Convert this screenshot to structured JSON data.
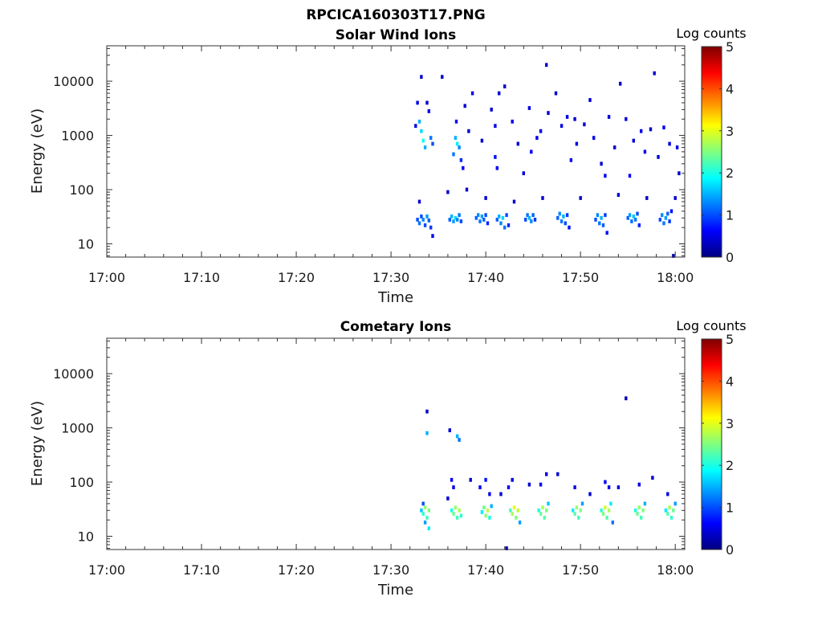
{
  "figure_title": "RPCICA160303T17.PNG",
  "colormap": "jet",
  "colormap_stops": [
    "#00007f",
    "#0000ff",
    "#007fff",
    "#00ffff",
    "#7fff7f",
    "#ffff00",
    "#ff7f00",
    "#ff0000",
    "#7f0000"
  ],
  "chart_data": [
    {
      "type": "heatmap",
      "title": "Solar Wind Ions",
      "xlabel": "Time",
      "ylabel": "Energy (eV)",
      "yscale": "log",
      "xticks": [
        "17:00",
        "17:10",
        "17:20",
        "17:30",
        "17:40",
        "17:50",
        "18:00"
      ],
      "xlim_minutes": [
        0,
        61
      ],
      "yticks": [
        10,
        100,
        1000,
        10000
      ],
      "ytick_labels": [
        "10",
        "100",
        "1000",
        "10000"
      ],
      "ylim": [
        5.7,
        45000
      ],
      "colorbar": {
        "label": "Log counts",
        "min": 0,
        "max": 5,
        "ticks": [
          "0",
          "1",
          "2",
          "3",
          "4",
          "5"
        ]
      },
      "data_points": [
        [
          32.8,
          28,
          1.0
        ],
        [
          33.0,
          24,
          1.2
        ],
        [
          33.2,
          32,
          1.0
        ],
        [
          33.4,
          28,
          1.3
        ],
        [
          33.6,
          22,
          1.0
        ],
        [
          33.8,
          32,
          1.4
        ],
        [
          34.0,
          27,
          1.1
        ],
        [
          34.2,
          20,
          0.9
        ],
        [
          34.4,
          14,
          0.6
        ],
        [
          33.0,
          1800,
          1.5
        ],
        [
          33.2,
          1200,
          1.7
        ],
        [
          33.4,
          800,
          1.9
        ],
        [
          33.6,
          600,
          1.5
        ],
        [
          34.2,
          900,
          1.2
        ],
        [
          34.4,
          700,
          1.0
        ],
        [
          33.0,
          60,
          0.4
        ],
        [
          32.8,
          4000,
          0.5
        ],
        [
          33.2,
          12000,
          0.4
        ],
        [
          34.0,
          2800,
          0.6
        ],
        [
          32.6,
          1500,
          0.5
        ],
        [
          36.2,
          28,
          1.1
        ],
        [
          36.4,
          32,
          1.5
        ],
        [
          36.6,
          26,
          1.4
        ],
        [
          36.8,
          30,
          1.7
        ],
        [
          37.0,
          28,
          1.3
        ],
        [
          37.2,
          34,
          1.2
        ],
        [
          37.4,
          26,
          1.0
        ],
        [
          36.8,
          900,
          1.5
        ],
        [
          37.0,
          700,
          1.8
        ],
        [
          37.2,
          600,
          1.3
        ],
        [
          36.6,
          450,
          1.2
        ],
        [
          37.4,
          350,
          0.8
        ],
        [
          37.6,
          250,
          0.6
        ],
        [
          37.8,
          3500,
          0.4
        ],
        [
          36.9,
          1800,
          0.7
        ],
        [
          39.0,
          30,
          1.1
        ],
        [
          39.2,
          34,
          1.3
        ],
        [
          39.4,
          26,
          1.2
        ],
        [
          39.6,
          32,
          1.4
        ],
        [
          39.8,
          28,
          1.1
        ],
        [
          40.0,
          34,
          1.0
        ],
        [
          40.2,
          24,
          0.8
        ],
        [
          41.2,
          28,
          1.1
        ],
        [
          41.4,
          32,
          1.5
        ],
        [
          41.6,
          24,
          1.3
        ],
        [
          41.8,
          30,
          1.7
        ],
        [
          42.0,
          20,
          1.2
        ],
        [
          42.2,
          34,
          1.0
        ],
        [
          42.4,
          22,
          0.8
        ],
        [
          41.0,
          400,
          0.7
        ],
        [
          41.2,
          250,
          0.6
        ],
        [
          41.0,
          1500,
          0.5
        ],
        [
          41.4,
          6000,
          0.4
        ],
        [
          44.2,
          28,
          1.0
        ],
        [
          44.4,
          34,
          1.2
        ],
        [
          44.6,
          30,
          1.5
        ],
        [
          44.8,
          26,
          1.3
        ],
        [
          45.0,
          34,
          1.1
        ],
        [
          45.2,
          28,
          0.9
        ],
        [
          44.0,
          200,
          0.5
        ],
        [
          44.6,
          3200,
          0.5
        ],
        [
          44.8,
          500,
          0.6
        ],
        [
          45.4,
          900,
          0.5
        ],
        [
          47.6,
          30,
          1.1
        ],
        [
          47.8,
          36,
          1.3
        ],
        [
          48.0,
          26,
          1.2
        ],
        [
          48.2,
          32,
          1.5
        ],
        [
          48.4,
          24,
          1.0
        ],
        [
          48.6,
          34,
          0.9
        ],
        [
          48.8,
          20,
          0.7
        ],
        [
          49.0,
          350,
          0.6
        ],
        [
          48.6,
          2200,
          0.5
        ],
        [
          47.4,
          6000,
          0.4
        ],
        [
          48.0,
          1500,
          0.5
        ],
        [
          51.6,
          28,
          1.0
        ],
        [
          51.8,
          34,
          1.3
        ],
        [
          52.0,
          24,
          1.2
        ],
        [
          52.2,
          30,
          1.5
        ],
        [
          52.4,
          22,
          1.1
        ],
        [
          52.6,
          34,
          0.9
        ],
        [
          52.8,
          16,
          0.7
        ],
        [
          51.4,
          900,
          0.5
        ],
        [
          51.0,
          4500,
          0.4
        ],
        [
          52.6,
          180,
          0.6
        ],
        [
          55.0,
          30,
          1.1
        ],
        [
          55.2,
          34,
          1.4
        ],
        [
          55.4,
          26,
          1.2
        ],
        [
          55.6,
          32,
          1.6
        ],
        [
          55.8,
          28,
          1.2
        ],
        [
          56.0,
          36,
          1.0
        ],
        [
          56.2,
          22,
          0.8
        ],
        [
          55.2,
          180,
          0.6
        ],
        [
          54.8,
          2000,
          0.5
        ],
        [
          55.6,
          800,
          0.4
        ],
        [
          56.4,
          1200,
          0.5
        ],
        [
          58.4,
          28,
          1.0
        ],
        [
          58.6,
          34,
          1.3
        ],
        [
          58.8,
          24,
          1.2
        ],
        [
          59.0,
          30,
          1.4
        ],
        [
          59.2,
          36,
          1.1
        ],
        [
          59.4,
          26,
          0.9
        ],
        [
          59.6,
          40,
          0.7
        ],
        [
          58.2,
          400,
          0.5
        ],
        [
          58.8,
          1400,
          0.6
        ],
        [
          59.4,
          700,
          0.5
        ],
        [
          35.4,
          12000,
          0.4
        ],
        [
          38.6,
          6000,
          0.5
        ],
        [
          40.6,
          3000,
          0.4
        ],
        [
          42.8,
          1800,
          0.5
        ],
        [
          43.4,
          700,
          0.4
        ],
        [
          45.8,
          1200,
          0.5
        ],
        [
          46.6,
          2600,
          0.4
        ],
        [
          49.6,
          700,
          0.5
        ],
        [
          50.4,
          1600,
          0.4
        ],
        [
          53.0,
          2200,
          0.5
        ],
        [
          53.6,
          600,
          0.4
        ],
        [
          54.2,
          9000,
          0.4
        ],
        [
          56.8,
          500,
          0.5
        ],
        [
          57.4,
          1300,
          0.4
        ],
        [
          57.8,
          14000,
          0.4
        ],
        [
          60.2,
          600,
          0.5
        ],
        [
          60.4,
          200,
          0.4
        ],
        [
          59.8,
          6,
          0.3
        ],
        [
          36.0,
          90,
          0.4
        ],
        [
          38.0,
          100,
          0.4
        ],
        [
          40.0,
          70,
          0.4
        ],
        [
          43.0,
          60,
          0.4
        ],
        [
          46.0,
          70,
          0.4
        ],
        [
          50.0,
          70,
          0.4
        ],
        [
          54.0,
          80,
          0.4
        ],
        [
          57.0,
          70,
          0.4
        ],
        [
          60.0,
          70,
          0.4
        ],
        [
          33.8,
          4000,
          0.4
        ],
        [
          38.2,
          1200,
          0.4
        ],
        [
          39.6,
          800,
          0.4
        ],
        [
          42.0,
          8000,
          0.4
        ],
        [
          46.4,
          20000,
          0.4
        ],
        [
          49.4,
          2000,
          0.4
        ],
        [
          52.2,
          300,
          0.4
        ]
      ]
    },
    {
      "type": "heatmap",
      "title": "Cometary Ions",
      "xlabel": "Time",
      "ylabel": "Energy (eV)",
      "yscale": "log",
      "xticks": [
        "17:00",
        "17:10",
        "17:20",
        "17:30",
        "17:40",
        "17:50",
        "18:00"
      ],
      "xlim_minutes": [
        0,
        61
      ],
      "yticks": [
        10,
        100,
        1000,
        10000
      ],
      "ytick_labels": [
        "10",
        "100",
        "1000",
        "10000"
      ],
      "ylim": [
        5.7,
        45000
      ],
      "colorbar": {
        "label": "Log counts",
        "min": 0,
        "max": 5,
        "ticks": [
          "0",
          "1",
          "2",
          "3",
          "4",
          "5"
        ]
      },
      "data_points": [
        [
          33.2,
          30,
          1.6
        ],
        [
          33.4,
          26,
          2.1
        ],
        [
          33.6,
          34,
          2.6
        ],
        [
          33.8,
          22,
          2.2
        ],
        [
          34.0,
          30,
          2.5
        ],
        [
          33.6,
          18,
          1.4
        ],
        [
          34.0,
          14,
          1.8
        ],
        [
          33.4,
          40,
          1.0
        ],
        [
          33.8,
          2000,
          0.4
        ],
        [
          33.8,
          800,
          1.5
        ],
        [
          36.4,
          30,
          2.0
        ],
        [
          36.6,
          26,
          2.4
        ],
        [
          36.8,
          34,
          2.6
        ],
        [
          37.0,
          22,
          2.2
        ],
        [
          37.2,
          30,
          2.7
        ],
        [
          37.4,
          24,
          2.1
        ],
        [
          36.4,
          110,
          0.6
        ],
        [
          36.6,
          80,
          0.5
        ],
        [
          37.0,
          700,
          1.5
        ],
        [
          37.2,
          600,
          1.2
        ],
        [
          36.2,
          900,
          0.4
        ],
        [
          39.6,
          28,
          1.8
        ],
        [
          39.8,
          34,
          2.4
        ],
        [
          40.0,
          24,
          2.6
        ],
        [
          40.2,
          30,
          2.8
        ],
        [
          40.4,
          22,
          2.0
        ],
        [
          40.6,
          36,
          1.5
        ],
        [
          39.4,
          80,
          0.6
        ],
        [
          40.0,
          110,
          0.7
        ],
        [
          40.4,
          60,
          0.5
        ],
        [
          42.6,
          30,
          2.2
        ],
        [
          42.8,
          26,
          2.7
        ],
        [
          43.0,
          34,
          3.0
        ],
        [
          43.2,
          22,
          2.5
        ],
        [
          43.4,
          30,
          2.8
        ],
        [
          43.6,
          18,
          1.4
        ],
        [
          42.4,
          80,
          0.6
        ],
        [
          42.8,
          110,
          0.5
        ],
        [
          45.6,
          30,
          2.0
        ],
        [
          45.8,
          26,
          2.4
        ],
        [
          46.0,
          34,
          2.7
        ],
        [
          46.2,
          22,
          2.3
        ],
        [
          46.4,
          30,
          2.5
        ],
        [
          46.6,
          40,
          1.6
        ],
        [
          45.8,
          90,
          0.6
        ],
        [
          46.4,
          140,
          0.5
        ],
        [
          49.2,
          30,
          1.8
        ],
        [
          49.4,
          26,
          2.3
        ],
        [
          49.6,
          34,
          2.6
        ],
        [
          49.8,
          22,
          2.2
        ],
        [
          50.0,
          30,
          2.5
        ],
        [
          50.2,
          40,
          1.4
        ],
        [
          49.4,
          80,
          0.5
        ],
        [
          52.2,
          30,
          2.1
        ],
        [
          52.4,
          26,
          2.5
        ],
        [
          52.6,
          34,
          2.9
        ],
        [
          52.8,
          22,
          2.3
        ],
        [
          53.0,
          30,
          2.7
        ],
        [
          53.2,
          40,
          1.8
        ],
        [
          53.4,
          18,
          1.2
        ],
        [
          52.6,
          100,
          0.6
        ],
        [
          53.0,
          80,
          0.5
        ],
        [
          55.8,
          30,
          2.0
        ],
        [
          56.0,
          26,
          2.4
        ],
        [
          56.2,
          34,
          2.6
        ],
        [
          56.4,
          22,
          2.2
        ],
        [
          56.6,
          30,
          2.5
        ],
        [
          56.8,
          40,
          1.5
        ],
        [
          56.2,
          90,
          0.5
        ],
        [
          59.0,
          30,
          1.8
        ],
        [
          59.2,
          26,
          2.3
        ],
        [
          59.4,
          34,
          2.7
        ],
        [
          59.6,
          22,
          2.1
        ],
        [
          59.8,
          30,
          2.4
        ],
        [
          60.0,
          40,
          1.4
        ],
        [
          59.2,
          60,
          0.5
        ],
        [
          54.8,
          3500,
          0.3
        ],
        [
          36.0,
          50,
          0.4
        ],
        [
          38.4,
          110,
          0.4
        ],
        [
          41.6,
          60,
          0.4
        ],
        [
          44.6,
          90,
          0.4
        ],
        [
          47.6,
          140,
          0.4
        ],
        [
          51.0,
          60,
          0.4
        ],
        [
          54.0,
          80,
          0.4
        ],
        [
          57.6,
          120,
          0.4
        ],
        [
          42.2,
          6,
          0.3
        ]
      ]
    }
  ]
}
